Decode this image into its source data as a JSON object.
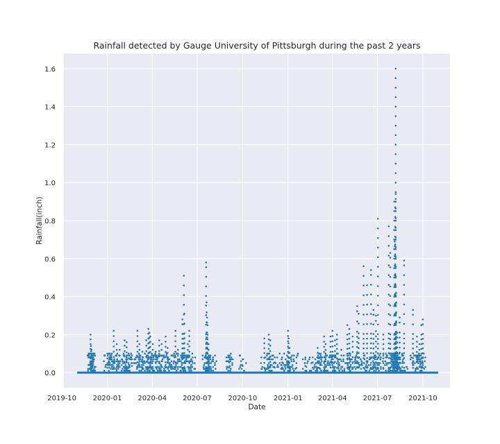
{
  "chart_data": {
    "type": "scatter",
    "title": "Rainfall detected by Gauge University of Pittsburgh during the past 2 years",
    "xlabel": "Date",
    "ylabel": "Rainfall(inch)",
    "x_axis_type": "date",
    "xlim": [
      "2019-10-05",
      "2021-11-25"
    ],
    "ylim": [
      -0.08,
      1.68
    ],
    "x_ticks": [
      "2019-10",
      "2020-01",
      "2020-04",
      "2020-07",
      "2020-10",
      "2021-01",
      "2021-04",
      "2021-07",
      "2021-10"
    ],
    "y_ticks": [
      "0.0",
      "0.2",
      "0.4",
      "0.6",
      "0.8",
      "1.0",
      "1.2",
      "1.4",
      "1.6"
    ],
    "grid": true,
    "style": "seaborn-darkgrid",
    "marker_color": "#1f77b4",
    "baseline_range": [
      "2019-11-01",
      "2021-11-01"
    ],
    "series": [
      {
        "values": [
          [
            "2019-11-28",
            0.2
          ],
          [
            "2019-11-29",
            0.14
          ],
          [
            "2019-11-30",
            0.12
          ],
          [
            "2019-12-01",
            0.1
          ],
          [
            "2019-12-02",
            0.06
          ],
          [
            "2019-12-03",
            0.04
          ],
          [
            "2020-01-01",
            0.1
          ],
          [
            "2020-01-05",
            0.08
          ],
          [
            "2020-01-10",
            0.06
          ],
          [
            "2020-01-14",
            0.22
          ],
          [
            "2020-01-20",
            0.15
          ],
          [
            "2020-01-26",
            0.12
          ],
          [
            "2020-02-05",
            0.17
          ],
          [
            "2020-02-09",
            0.16
          ],
          [
            "2020-02-13",
            0.1
          ],
          [
            "2020-02-20",
            0.07
          ],
          [
            "2020-03-02",
            0.22
          ],
          [
            "2020-03-06",
            0.15
          ],
          [
            "2020-03-12",
            0.11
          ],
          [
            "2020-03-20",
            0.17
          ],
          [
            "2020-03-24",
            0.23
          ],
          [
            "2020-03-26",
            0.21
          ],
          [
            "2020-03-28",
            0.19
          ],
          [
            "2020-04-02",
            0.15
          ],
          [
            "2020-04-08",
            0.11
          ],
          [
            "2020-04-15",
            0.17
          ],
          [
            "2020-04-20",
            0.15
          ],
          [
            "2020-04-28",
            0.19
          ],
          [
            "2020-05-02",
            0.13
          ],
          [
            "2020-05-10",
            0.09
          ],
          [
            "2020-05-18",
            0.22
          ],
          [
            "2020-05-23",
            0.12
          ],
          [
            "2020-06-01",
            0.28
          ],
          [
            "2020-06-04",
            0.51
          ],
          [
            "2020-06-05",
            0.31
          ],
          [
            "2020-06-12",
            0.15
          ],
          [
            "2020-06-15",
            0.22
          ],
          [
            "2020-06-21",
            0.06
          ],
          [
            "2020-07-19",
            0.58
          ],
          [
            "2020-07-20",
            0.37
          ],
          [
            "2020-07-21",
            0.29
          ],
          [
            "2020-07-22",
            0.25
          ],
          [
            "2020-07-24",
            0.15
          ],
          [
            "2020-08-02",
            0.06
          ],
          [
            "2020-09-04",
            0.08
          ],
          [
            "2020-09-05",
            0.07
          ],
          [
            "2020-10-01",
            0.07
          ],
          [
            "2020-11-14",
            0.18
          ],
          [
            "2020-11-23",
            0.2
          ],
          [
            "2020-11-26",
            0.17
          ],
          [
            "2020-12-05",
            0.08
          ],
          [
            "2020-12-20",
            0.08
          ],
          [
            "2021-01-01",
            0.22
          ],
          [
            "2021-01-02",
            0.18
          ],
          [
            "2021-01-04",
            0.13
          ],
          [
            "2021-01-18",
            0.05
          ],
          [
            "2021-02-05",
            0.07
          ],
          [
            "2021-02-20",
            0.08
          ],
          [
            "2021-03-02",
            0.13
          ],
          [
            "2021-03-05",
            0.1
          ],
          [
            "2021-03-15",
            0.19
          ],
          [
            "2021-03-18",
            0.15
          ],
          [
            "2021-03-28",
            0.19
          ],
          [
            "2021-04-01",
            0.22
          ],
          [
            "2021-04-06",
            0.17
          ],
          [
            "2021-04-10",
            0.2
          ],
          [
            "2021-04-19",
            0.12
          ],
          [
            "2021-05-01",
            0.25
          ],
          [
            "2021-05-05",
            0.23
          ],
          [
            "2021-05-12",
            0.19
          ],
          [
            "2021-05-21",
            0.35
          ],
          [
            "2021-05-24",
            0.31
          ],
          [
            "2021-06-03",
            0.56
          ],
          [
            "2021-06-10",
            0.46
          ],
          [
            "2021-06-18",
            0.54
          ],
          [
            "2021-06-23",
            0.33
          ],
          [
            "2021-06-28",
            0.3
          ],
          [
            "2021-07-02",
            0.81
          ],
          [
            "2021-07-13",
            0.2
          ],
          [
            "2021-07-24",
            0.77
          ],
          [
            "2021-07-27",
            0.63
          ],
          [
            "2021-08-04",
            0.9
          ],
          [
            "2021-08-05",
            0.69
          ],
          [
            "2021-08-06",
            0.7
          ],
          [
            "2021-08-06",
            0.87
          ],
          [
            "2021-08-07",
            0.94
          ],
          [
            "2021-08-07",
            1.6
          ],
          [
            "2021-08-08",
            0.42
          ],
          [
            "2021-08-08",
            0.37
          ],
          [
            "2021-08-08",
            0.27
          ],
          [
            "2021-08-10",
            0.21
          ],
          [
            "2021-08-15",
            0.29
          ],
          [
            "2021-08-24",
            0.59
          ],
          [
            "2021-09-11",
            0.33
          ],
          [
            "2021-09-19",
            0.19
          ],
          [
            "2021-09-24",
            0.15
          ],
          [
            "2021-09-28",
            0.25
          ],
          [
            "2021-10-01",
            0.28
          ]
        ]
      }
    ]
  }
}
